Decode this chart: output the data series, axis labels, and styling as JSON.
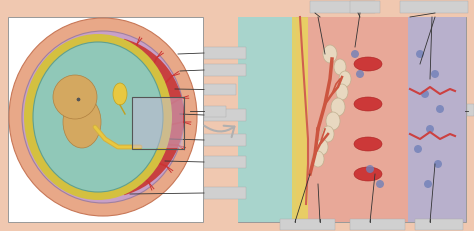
{
  "bg_color": "#f0c8b0",
  "white_box_color": "#ffffff",
  "label_box_color": "#d0d0d0",
  "arrow_color": "#b0b0b0",
  "line_color": "#333333",
  "uterus_wall_color": "#e8a888",
  "uterus_wall_edge": "#c87858",
  "placenta_red_color": "#c04030",
  "decidua_color": "#c8a0c0",
  "amniotic_color": "#90c8b8",
  "fetus_skin": "#d4a860",
  "cord_color": "#d4b840",
  "vessel_red": "#cc3333",
  "right_panel_bg": "#e8b898",
  "teal_bg": "#a8d4cc",
  "membrane_yellow": "#e8d060",
  "maternal_wall": "#e8c0a8",
  "blue_gray_layer": "#9090c0",
  "intervillous_pink": "#e8b0a0",
  "blue_dot": "#7080b8",
  "red_vessel": "#cc4040"
}
